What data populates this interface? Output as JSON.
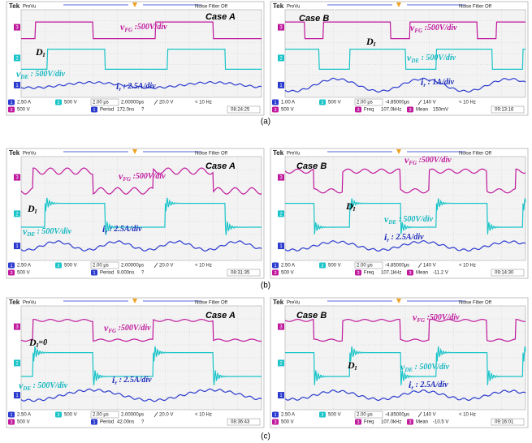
{
  "header": {
    "brand": "Tek",
    "mode": "PreVu",
    "filter": "Noise Filter Off"
  },
  "captions": [
    "(a)",
    "(b)",
    "(c)"
  ],
  "panels": [
    {
      "case": "Case A",
      "labels": [
        {
          "main": "v",
          "sub": "FG",
          "rest": " :500V/div"
        },
        {
          "main": "D",
          "sub": "I"
        },
        {
          "main": "v",
          "sub": "DE",
          "rest": " : 500V/div"
        },
        {
          "main": "i",
          "sub": "r",
          "rest": " : 2.5A/div"
        }
      ],
      "status": {
        "channels": [
          {
            "id": "1",
            "scale": "2.50 A"
          },
          {
            "id": "2",
            "scale": "500 V"
          },
          {
            "id": "3",
            "scale": "500 V"
          }
        ],
        "timebase": "2.00 μs",
        "trigger_pos": "2.00000μs",
        "trigger_level": "20.0 V",
        "trigger_freq": "< 10 Hz",
        "measurements": [
          {
            "id": "1",
            "name": "Period",
            "value": "172.0ns",
            "note": "?"
          }
        ],
        "clock": "08:24:25"
      }
    },
    {
      "case": "Case B",
      "labels": [
        {
          "main": "v",
          "sub": "FG",
          "rest": " :500V/div"
        },
        {
          "main": "D",
          "sub": "I"
        },
        {
          "main": "v",
          "sub": "DE",
          "rest": " : 500V/div"
        },
        {
          "main": "i",
          "sub": "r",
          "rest": " : 1A/div"
        }
      ],
      "status": {
        "channels": [
          {
            "id": "1",
            "scale": "1.00 A"
          },
          {
            "id": "2",
            "scale": "500 V"
          },
          {
            "id": "3",
            "scale": "500 V"
          }
        ],
        "timebase": "2.00 μs",
        "trigger_pos": "-4.85000μs",
        "trigger_level": "140 V",
        "trigger_freq": "< 10 Hz",
        "measurements": [
          {
            "id": "3",
            "name": "Freq",
            "value": "107.0kHz"
          },
          {
            "id": "3",
            "name": "Mean",
            "value": "150mV"
          }
        ],
        "clock": "09:13:16"
      }
    },
    {
      "case": "Case A",
      "labels": [
        {
          "main": "v",
          "sub": "FG",
          "rest": " :500V/div"
        },
        {
          "main": "D",
          "sub": "I"
        },
        {
          "main": "v",
          "sub": "DE",
          "rest": " : 500V/div"
        },
        {
          "main": "i",
          "sub": "r",
          "rest": " : 2.5A/div"
        }
      ],
      "status": {
        "channels": [
          {
            "id": "1",
            "scale": "2.50 A"
          },
          {
            "id": "2",
            "scale": "500 V"
          },
          {
            "id": "3",
            "scale": "500 V"
          }
        ],
        "timebase": "2.00 μs",
        "trigger_pos": "2.00000μs",
        "trigger_level": "20.0 V",
        "trigger_freq": "< 10 Hz",
        "measurements": [
          {
            "id": "1",
            "name": "Period",
            "value": "9.000ns",
            "note": "?"
          }
        ],
        "clock": "08:31:35"
      }
    },
    {
      "case": "Case B",
      "labels": [
        {
          "main": "v",
          "sub": "FG",
          "rest": " :500V/div"
        },
        {
          "main": "D",
          "sub": "I"
        },
        {
          "main": "v",
          "sub": "DE",
          "rest": " : 500V/div"
        },
        {
          "main": "i",
          "sub": "r",
          "rest": " : 2.5A/div"
        }
      ],
      "status": {
        "channels": [
          {
            "id": "1",
            "scale": "2.50 A"
          },
          {
            "id": "2",
            "scale": "500 V"
          },
          {
            "id": "3",
            "scale": "500 V"
          }
        ],
        "timebase": "2.00 μs",
        "trigger_pos": "-4.85000μs",
        "trigger_level": "140 V",
        "trigger_freq": "< 10 Hz",
        "measurements": [
          {
            "id": "3",
            "name": "Freq",
            "value": "107.1kHz"
          },
          {
            "id": "3",
            "name": "Mean",
            "value": "-11.2 V"
          }
        ],
        "clock": "09:14:30"
      }
    },
    {
      "case": "Case A",
      "labels": [
        {
          "main": "v",
          "sub": "FG",
          "rest": " :500V/div"
        },
        {
          "main": "D",
          "sub": "I",
          "rest": "=0"
        },
        {
          "main": "v",
          "sub": "DE",
          "rest": " : 500V/div"
        },
        {
          "main": "i",
          "sub": "r",
          "rest": " : 2.5A/div"
        }
      ],
      "status": {
        "channels": [
          {
            "id": "1",
            "scale": "2.50 A"
          },
          {
            "id": "2",
            "scale": "500 V"
          },
          {
            "id": "3",
            "scale": "500 V"
          }
        ],
        "timebase": "2.00 μs",
        "trigger_pos": "2.00000μs",
        "trigger_level": "20.0 V",
        "trigger_freq": "< 10 Hz",
        "measurements": [
          {
            "id": "1",
            "name": "Period",
            "value": "42.00ns",
            "note": "?"
          }
        ],
        "clock": "08:36:43"
      }
    },
    {
      "case": "Case B",
      "labels": [
        {
          "main": "v",
          "sub": "FG",
          "rest": " :500V/div"
        },
        {
          "main": "D",
          "sub": "I"
        },
        {
          "main": "v",
          "sub": "DE",
          "rest": " : 500V/div"
        },
        {
          "main": "i",
          "sub": "r",
          "rest": " : 2.5A/div"
        }
      ],
      "status": {
        "channels": [
          {
            "id": "1",
            "scale": "2.50 A"
          },
          {
            "id": "2",
            "scale": "500 V"
          },
          {
            "id": "3",
            "scale": "500 V"
          }
        ],
        "timebase": "2.00 μs",
        "trigger_pos": "-4.85000μs",
        "trigger_level": "140 V",
        "trigger_freq": "< 10 Hz",
        "measurements": [
          {
            "id": "3",
            "name": "Freq",
            "value": "107.0kHz"
          },
          {
            "id": "3",
            "name": "Mean",
            "value": "-10.5 V"
          }
        ],
        "clock": "09:16:01"
      }
    }
  ]
}
